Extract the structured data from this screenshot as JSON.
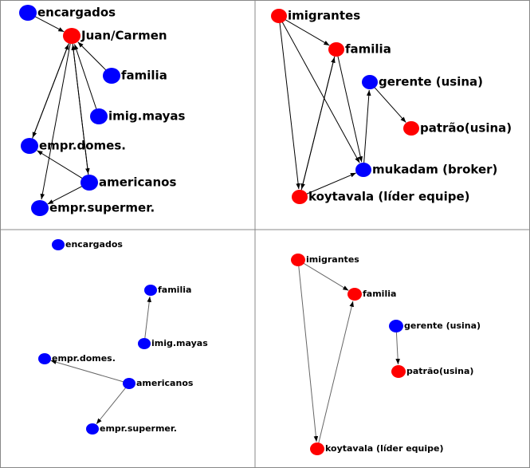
{
  "panels": [
    {
      "nodes": [
        {
          "label": "encargados",
          "color": "#0000ff"
        },
        {
          "label": "Juan/Carmen",
          "color": "#ff0000"
        },
        {
          "label": "familia",
          "color": "#0000ff"
        },
        {
          "label": "imig.mayas",
          "color": "#0000ff"
        },
        {
          "label": "empr.domes.",
          "color": "#0000ff"
        },
        {
          "label": "americanos",
          "color": "#0000ff"
        },
        {
          "label": "empr.supermer.",
          "color": "#0000ff"
        }
      ]
    },
    {
      "nodes": [
        {
          "label": "imigrantes",
          "color": "#ff0000"
        },
        {
          "label": "familia",
          "color": "#ff0000"
        },
        {
          "label": "gerente (usina)",
          "color": "#0000ff"
        },
        {
          "label": "patrão(usina)",
          "color": "#ff0000"
        },
        {
          "label": "mukadam (broker)",
          "color": "#0000ff"
        },
        {
          "label": "koytavala (líder equipe)",
          "color": "#ff0000"
        }
      ]
    },
    {
      "nodes": [
        {
          "label": "encargados",
          "color": "#0000ff"
        },
        {
          "label": "familia",
          "color": "#0000ff"
        },
        {
          "label": "imig.mayas",
          "color": "#0000ff"
        },
        {
          "label": "empr.domes.",
          "color": "#0000ff"
        },
        {
          "label": "americanos",
          "color": "#0000ff"
        },
        {
          "label": "empr.supermer.",
          "color": "#0000ff"
        }
      ]
    },
    {
      "nodes": [
        {
          "label": "imigrantes",
          "color": "#ff0000"
        },
        {
          "label": "familia",
          "color": "#ff0000"
        },
        {
          "label": "gerente (usina)",
          "color": "#0000ff"
        },
        {
          "label": "patrão(usina)",
          "color": "#ff0000"
        },
        {
          "label": "koytavala (líder equipe)",
          "color": "#ff0000"
        }
      ]
    }
  ]
}
